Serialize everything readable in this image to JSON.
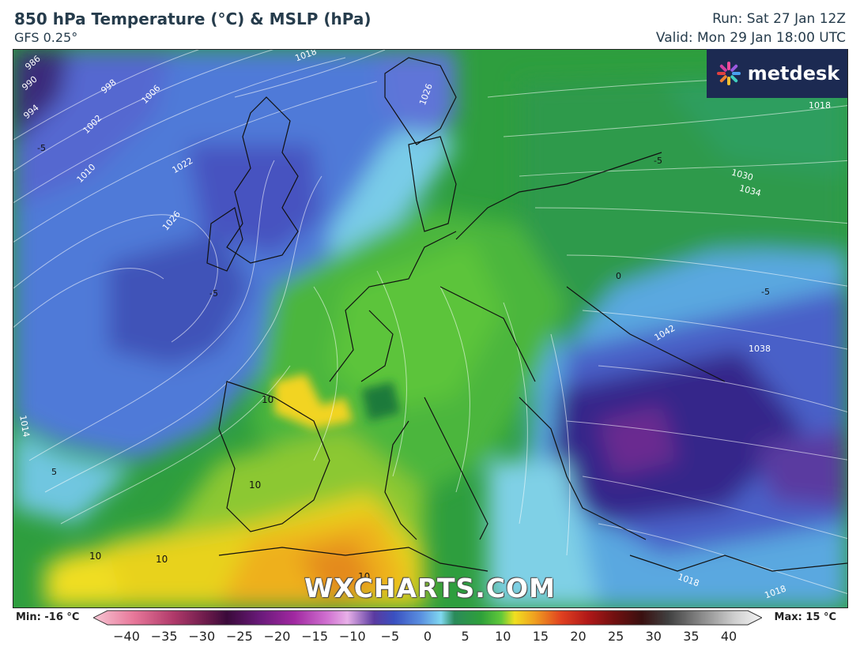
{
  "header": {
    "title": "850 hPa Temperature (°C) & MSLP (hPa)",
    "subtitle": "GFS 0.25°",
    "run": "Run: Sat 27 Jan 12Z",
    "valid": "Valid: Mon 29 Jan 18:00 UTC"
  },
  "logo": {
    "text": "metdesk",
    "icon": "metdesk-star-icon"
  },
  "watermark": "WXCHARTS.COM",
  "legend": {
    "min_label": "Min: -16 °C",
    "max_label": "Max: 15 °C",
    "ticks": [
      "−40",
      "−35",
      "−30",
      "−25",
      "−20",
      "−15",
      "−10",
      "−5",
      "0",
      "5",
      "10",
      "15",
      "20",
      "25",
      "30",
      "35",
      "40"
    ]
  },
  "isobar_labels": [
    "986",
    "990",
    "994",
    "998",
    "1002",
    "1006",
    "1010",
    "1014",
    "1018",
    "1022",
    "1026",
    "1030",
    "1034",
    "1038",
    "1042"
  ],
  "temperature_labels": [
    "-5",
    "0",
    "5",
    "10"
  ],
  "colors": {
    "cold_purple": "#3a2a7a",
    "cold_blue": "#4a60c8",
    "cool_cyan": "#7ad0e8",
    "mild_green": "#2e9e3e",
    "warm_green": "#58c23a",
    "warm_yellow": "#f0d820",
    "hot_orange": "#f0a020",
    "logo_bg": "#1c2a52"
  }
}
